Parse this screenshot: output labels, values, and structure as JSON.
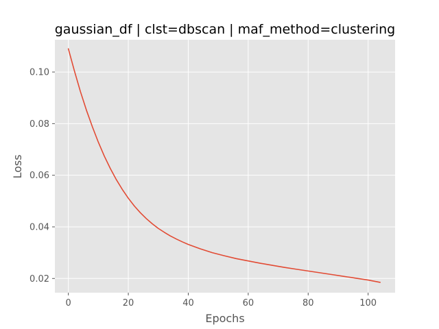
{
  "chart_data": {
    "type": "line",
    "title": "gaussian_df | clst=dbscan | maf_method=clustering",
    "xlabel": "Epochs",
    "ylabel": "Loss",
    "xlim": [
      -4.5,
      109
    ],
    "ylim": [
      0.0145,
      0.1125
    ],
    "xticks": [
      0,
      20,
      40,
      60,
      80,
      100
    ],
    "xtick_labels": [
      "0",
      "20",
      "40",
      "60",
      "80",
      "100"
    ],
    "yticks": [
      0.02,
      0.04,
      0.06,
      0.08,
      0.1
    ],
    "ytick_labels": [
      "0.02",
      "0.04",
      "0.06",
      "0.08",
      "0.10"
    ],
    "grid": true,
    "legend": "none",
    "series": [
      {
        "color": "#e24a33",
        "x": [
          0,
          2,
          4,
          6,
          8,
          10,
          12,
          14,
          16,
          18,
          20,
          22,
          24,
          26,
          28,
          30,
          32,
          34,
          36,
          38,
          40,
          44,
          48,
          52,
          56,
          60,
          64,
          68,
          72,
          76,
          80,
          84,
          88,
          92,
          96,
          100,
          104
        ],
        "y": [
          0.109,
          0.1005,
          0.0925,
          0.0853,
          0.0788,
          0.0728,
          0.0674,
          0.0626,
          0.0583,
          0.0545,
          0.0511,
          0.0481,
          0.0455,
          0.0432,
          0.0412,
          0.0394,
          0.0379,
          0.0365,
          0.0353,
          0.0342,
          0.0332,
          0.0315,
          0.03,
          0.0288,
          0.0277,
          0.0268,
          0.0259,
          0.0251,
          0.0243,
          0.0236,
          0.0229,
          0.0222,
          0.0215,
          0.0208,
          0.0201,
          0.0194,
          0.0185
        ]
      }
    ]
  },
  "colors": {
    "plot_background": "#e5e5e5",
    "grid": "#ffffff",
    "line": "#e24a33",
    "tick_text": "#555555"
  }
}
